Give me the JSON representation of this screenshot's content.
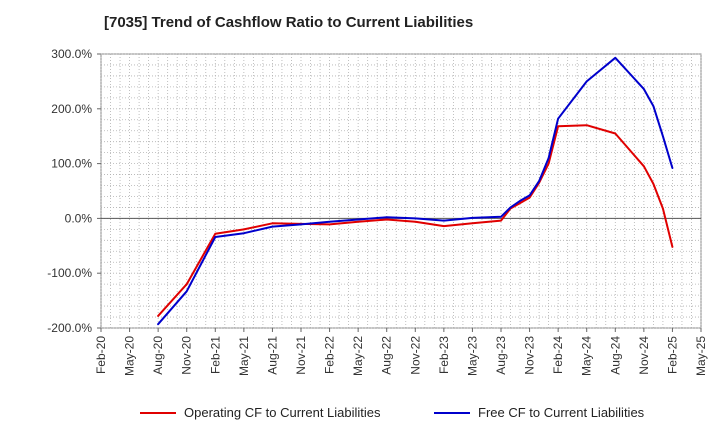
{
  "chart_data": {
    "type": "line",
    "title": "[7035]  Trend of Cashflow Ratio to Current Liabilities",
    "xlabel": "",
    "ylabel": "",
    "x_ticks": [
      "Feb-20",
      "May-20",
      "Aug-20",
      "Nov-20",
      "Feb-21",
      "May-21",
      "Aug-21",
      "Nov-21",
      "Feb-22",
      "May-22",
      "Aug-22",
      "Nov-22",
      "Feb-23",
      "May-23",
      "Aug-23",
      "Nov-23",
      "Feb-24",
      "May-24",
      "Aug-24",
      "Nov-24",
      "Feb-25",
      "May-25"
    ],
    "y_ticks": [
      "300.0%",
      "200.0%",
      "100.0%",
      "0.0%",
      "-100.0%",
      "-200.0%"
    ],
    "ylim": [
      -200,
      300
    ],
    "grid": true,
    "legend_position": "bottom",
    "x": [
      "Aug-20",
      "Nov-20",
      "Feb-21",
      "May-21",
      "Aug-21",
      "Nov-21",
      "Feb-22",
      "May-22",
      "Aug-22",
      "Nov-22",
      "Feb-23",
      "May-23",
      "Aug-23",
      "Sep-23",
      "Oct-23",
      "Nov-23",
      "Dec-23",
      "Jan-24",
      "Feb-24",
      "May-24",
      "Aug-24",
      "Nov-24",
      "Dec-24",
      "Jan-25",
      "Feb-25"
    ],
    "series": [
      {
        "name": "Operating CF to Current Liabilities",
        "color": "#e00000",
        "values": [
          -178,
          -120,
          -28,
          -20,
          -9,
          -10,
          -11,
          -6,
          -2,
          -6,
          -14,
          -9,
          -4,
          18,
          28,
          38,
          65,
          100,
          168,
          170,
          155,
          95,
          63,
          18,
          -52
        ]
      },
      {
        "name": "Free CF to Current Liabilities",
        "color": "#0000cc",
        "values": [
          -193,
          -133,
          -34,
          -27,
          -15,
          -11,
          -6,
          -2,
          2,
          0,
          -4,
          1,
          3,
          20,
          32,
          42,
          68,
          110,
          182,
          250,
          293,
          236,
          205,
          150,
          92
        ]
      }
    ]
  }
}
